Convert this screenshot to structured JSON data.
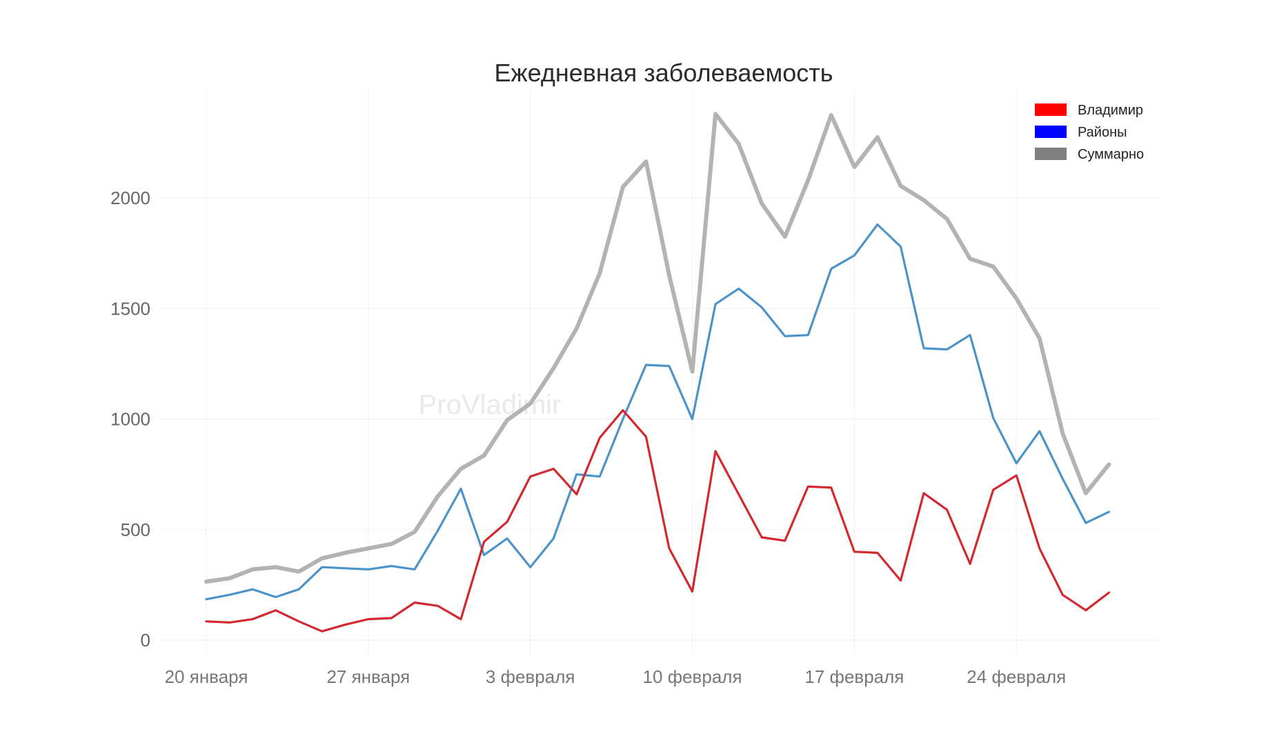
{
  "chart_data": {
    "type": "line",
    "title": "Ежедневная заболеваемость",
    "watermark": "ProVladimir",
    "xlabel": "",
    "ylabel": "",
    "x": [
      "2022-01-20",
      "2022-01-21",
      "2022-01-22",
      "2022-01-23",
      "2022-01-24",
      "2022-01-25",
      "2022-01-26",
      "2022-01-27",
      "2022-01-28",
      "2022-01-29",
      "2022-01-30",
      "2022-01-31",
      "2022-02-01",
      "2022-02-02",
      "2022-02-03",
      "2022-02-04",
      "2022-02-05",
      "2022-02-06",
      "2022-02-07",
      "2022-02-08",
      "2022-02-09",
      "2022-02-10",
      "2022-02-11",
      "2022-02-12",
      "2022-02-13",
      "2022-02-14",
      "2022-02-15",
      "2022-02-16",
      "2022-02-17",
      "2022-02-18",
      "2022-02-19",
      "2022-02-20",
      "2022-02-21",
      "2022-02-22",
      "2022-02-23",
      "2022-02-24",
      "2022-02-25",
      "2022-02-26",
      "2022-02-27",
      "2022-02-28"
    ],
    "xticks": [
      {
        "index": 0,
        "label": "20 января"
      },
      {
        "index": 7,
        "label": "27 января"
      },
      {
        "index": 14,
        "label": "3 февраля"
      },
      {
        "index": 21,
        "label": "10 февраля"
      },
      {
        "index": 28,
        "label": "17 февраля"
      },
      {
        "index": 35,
        "label": "24 февраля"
      }
    ],
    "yticks": [
      0,
      500,
      1000,
      1500,
      2000
    ],
    "ylim": [
      -50,
      2500
    ],
    "grid": true,
    "legend_position": "top-right",
    "series": [
      {
        "name": "Суммарно",
        "color": "#b3b3b3",
        "legend_color": "#808080",
        "values": [
          265,
          280,
          320,
          330,
          310,
          370,
          395,
          415,
          435,
          490,
          650,
          775,
          835,
          995,
          1070,
          1230,
          1410,
          1660,
          2050,
          2165,
          1650,
          1215,
          2380,
          2245,
          1975,
          1825,
          2080,
          2375,
          2140,
          2275,
          2055,
          1990,
          1905,
          1725,
          1690,
          1545,
          1365,
          935,
          665,
          795
        ]
      },
      {
        "name": "Районы",
        "color": "#4b93c8",
        "legend_color": "#0000ff",
        "values": [
          185,
          205,
          230,
          195,
          230,
          330,
          325,
          320,
          335,
          320,
          495,
          685,
          385,
          460,
          330,
          460,
          750,
          740,
          1000,
          1245,
          1240,
          1000,
          1520,
          1590,
          1505,
          1375,
          1380,
          1680,
          1740,
          1880,
          1780,
          1320,
          1315,
          1380,
          1005,
          800,
          945,
          730,
          530,
          580
        ]
      },
      {
        "name": "Владимир",
        "color": "#d3282f",
        "legend_color": "#ff0000",
        "values": [
          85,
          80,
          95,
          135,
          85,
          40,
          70,
          95,
          100,
          170,
          155,
          95,
          445,
          535,
          740,
          775,
          660,
          915,
          1040,
          920,
          415,
          220,
          855,
          660,
          465,
          450,
          695,
          690,
          400,
          395,
          270,
          665,
          590,
          345,
          680,
          745,
          415,
          205,
          135,
          215
        ]
      }
    ],
    "legend": [
      "Владимир",
      "Районы",
      "Суммарно"
    ]
  }
}
